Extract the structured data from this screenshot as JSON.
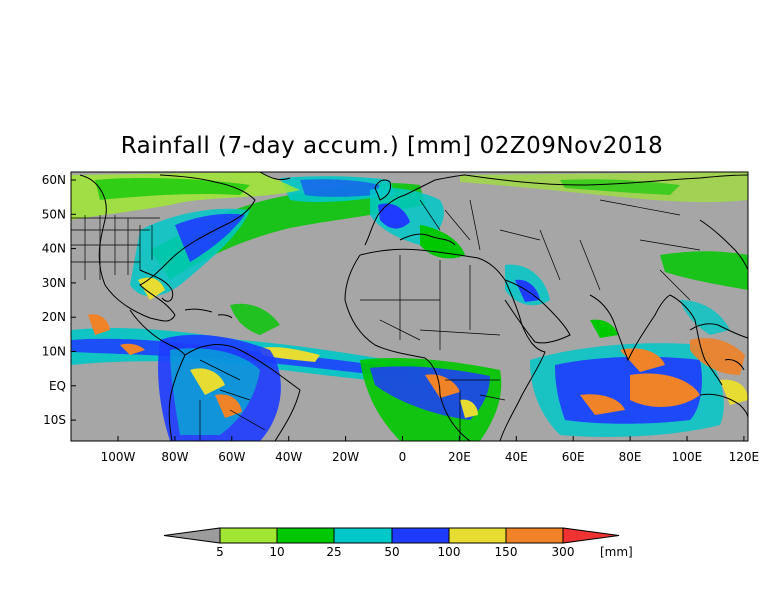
{
  "title": "Rainfall (7-day accum.) [mm] 02Z09Nov2018",
  "lat_labels": [
    "60N",
    "50N",
    "40N",
    "30N",
    "20N",
    "10N",
    "EQ",
    "10S"
  ],
  "lon_labels": [
    "100W",
    "80W",
    "60W",
    "40W",
    "20W",
    "0",
    "20E",
    "40E",
    "60E",
    "80E",
    "100E",
    "120E"
  ],
  "legend": {
    "unit": "[mm]",
    "thresholds": [
      "5",
      "10",
      "25",
      "50",
      "100",
      "150",
      "300"
    ],
    "colors": [
      "#9c9c9c",
      "#a0e632",
      "#00c800",
      "#00c8c8",
      "#1e3cff",
      "#e6dc32",
      "#f08228",
      "#f03232"
    ]
  },
  "colors": {
    "land_ocean_background": "#a6a6a6",
    "boundaries": "#000000"
  }
}
